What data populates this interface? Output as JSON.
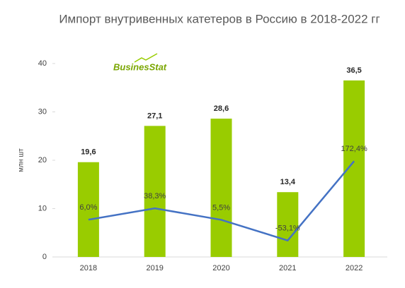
{
  "chart_data": {
    "type": "bar+line",
    "title": "Импорт внутривенных катетеров в Россию в 2018-2022 гг",
    "y_label": "млн шт",
    "logo": "BusinesStat",
    "categories": [
      "2018",
      "2019",
      "2020",
      "2021",
      "2022"
    ],
    "series": [
      {
        "type": "bar",
        "color": "#99cc00",
        "values": [
          19.6,
          27.1,
          28.6,
          13.4,
          36.5
        ],
        "value_labels": [
          "19,6",
          "27,1",
          "28,6",
          "13,4",
          "36,5"
        ]
      },
      {
        "type": "line",
        "axis": "y2",
        "color": "#4472c4",
        "values": [
          6.0,
          38.3,
          5.5,
          -53.1,
          172.4
        ],
        "value_labels": [
          "6,0%",
          "38,3%",
          "5,5%",
          "-53,1%",
          "172,4%"
        ]
      }
    ],
    "ylim": [
      0,
      40
    ],
    "yticks": [
      0,
      10,
      20,
      30,
      40
    ],
    "y2lim": [
      -100,
      450
    ]
  }
}
